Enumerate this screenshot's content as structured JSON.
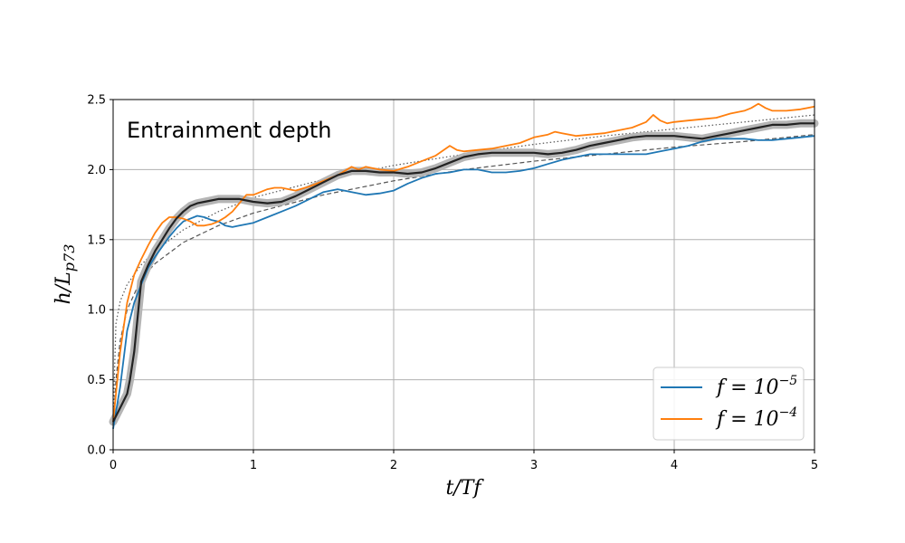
{
  "chart_data": {
    "type": "line",
    "annotation": "Entrainment depth",
    "xlabel": "t/Tf",
    "ylabel": "h/L_p73",
    "ylabel_main": "h/L",
    "ylabel_sub": "p73",
    "xlim": [
      0,
      5
    ],
    "ylim": [
      0,
      2.5
    ],
    "xticks": [
      "0",
      "1",
      "2",
      "3",
      "4",
      "5"
    ],
    "yticks": [
      "0.0",
      "0.5",
      "1.0",
      "1.5",
      "2.0",
      "2.5"
    ],
    "grid": true,
    "legend_position": "lower-right",
    "colors": {
      "blue": "#1f77b4",
      "orange": "#ff7f0e",
      "black": "#222222",
      "band": "#b5b5b5",
      "guide": "#555555"
    },
    "series": [
      {
        "name": "f=10^-5",
        "legend_base": "f = 10",
        "legend_exp": "−5",
        "color": "#1f77b4",
        "x": [
          0,
          0.05,
          0.1,
          0.15,
          0.2,
          0.25,
          0.3,
          0.35,
          0.4,
          0.45,
          0.5,
          0.55,
          0.6,
          0.65,
          0.7,
          0.75,
          0.8,
          0.85,
          0.9,
          0.95,
          1.0,
          1.1,
          1.2,
          1.3,
          1.4,
          1.5,
          1.6,
          1.7,
          1.8,
          1.9,
          2.0,
          2.1,
          2.2,
          2.3,
          2.4,
          2.5,
          2.6,
          2.7,
          2.8,
          2.9,
          3.0,
          3.1,
          3.2,
          3.3,
          3.4,
          3.5,
          3.6,
          3.7,
          3.8,
          3.9,
          4.0,
          4.1,
          4.2,
          4.3,
          4.4,
          4.5,
          4.6,
          4.7,
          4.8,
          4.9,
          5.0
        ],
        "y": [
          0.15,
          0.45,
          0.85,
          1.05,
          1.18,
          1.3,
          1.38,
          1.45,
          1.52,
          1.58,
          1.63,
          1.65,
          1.67,
          1.66,
          1.64,
          1.63,
          1.6,
          1.59,
          1.6,
          1.61,
          1.62,
          1.66,
          1.7,
          1.74,
          1.79,
          1.84,
          1.86,
          1.84,
          1.82,
          1.83,
          1.85,
          1.9,
          1.94,
          1.97,
          1.98,
          2.0,
          2.0,
          1.98,
          1.98,
          1.99,
          2.01,
          2.04,
          2.07,
          2.09,
          2.11,
          2.11,
          2.11,
          2.11,
          2.11,
          2.13,
          2.15,
          2.17,
          2.2,
          2.22,
          2.22,
          2.22,
          2.21,
          2.21,
          2.22,
          2.23,
          2.24
        ]
      },
      {
        "name": "f=10^-4",
        "legend_base": "f = 10",
        "legend_exp": "−4",
        "color": "#ff7f0e",
        "x": [
          0,
          0.05,
          0.1,
          0.15,
          0.2,
          0.25,
          0.3,
          0.35,
          0.4,
          0.45,
          0.5,
          0.55,
          0.6,
          0.65,
          0.7,
          0.75,
          0.8,
          0.85,
          0.9,
          0.95,
          1.0,
          1.05,
          1.1,
          1.15,
          1.2,
          1.3,
          1.4,
          1.5,
          1.6,
          1.7,
          1.75,
          1.8,
          1.9,
          2.0,
          2.1,
          2.2,
          2.3,
          2.4,
          2.45,
          2.5,
          2.6,
          2.7,
          2.8,
          2.9,
          3.0,
          3.1,
          3.15,
          3.2,
          3.3,
          3.4,
          3.5,
          3.6,
          3.7,
          3.8,
          3.85,
          3.9,
          3.95,
          4.0,
          4.1,
          4.2,
          4.3,
          4.4,
          4.5,
          4.55,
          4.6,
          4.65,
          4.7,
          4.8,
          4.9,
          5.0
        ],
        "y": [
          0.2,
          0.7,
          1.05,
          1.25,
          1.36,
          1.46,
          1.55,
          1.62,
          1.66,
          1.66,
          1.65,
          1.63,
          1.6,
          1.6,
          1.61,
          1.63,
          1.66,
          1.7,
          1.76,
          1.82,
          1.82,
          1.84,
          1.86,
          1.87,
          1.87,
          1.85,
          1.88,
          1.92,
          1.96,
          2.02,
          2.0,
          2.02,
          2.0,
          1.99,
          2.02,
          2.06,
          2.1,
          2.17,
          2.14,
          2.13,
          2.14,
          2.15,
          2.17,
          2.19,
          2.23,
          2.25,
          2.27,
          2.26,
          2.24,
          2.25,
          2.26,
          2.28,
          2.3,
          2.34,
          2.39,
          2.35,
          2.33,
          2.34,
          2.35,
          2.36,
          2.37,
          2.4,
          2.42,
          2.44,
          2.47,
          2.44,
          2.42,
          2.42,
          2.43,
          2.45
        ]
      },
      {
        "name": "",
        "style": "mean",
        "color": "#222222",
        "x": [
          0,
          0.05,
          0.1,
          0.12,
          0.15,
          0.18,
          0.2,
          0.25,
          0.3,
          0.35,
          0.4,
          0.45,
          0.5,
          0.55,
          0.6,
          0.65,
          0.7,
          0.75,
          0.8,
          0.85,
          0.9,
          0.95,
          1.0,
          1.1,
          1.2,
          1.3,
          1.4,
          1.5,
          1.6,
          1.7,
          1.8,
          1.9,
          2.0,
          2.1,
          2.2,
          2.3,
          2.4,
          2.5,
          2.6,
          2.7,
          2.8,
          2.9,
          3.0,
          3.1,
          3.2,
          3.3,
          3.4,
          3.5,
          3.6,
          3.7,
          3.8,
          3.9,
          4.0,
          4.1,
          4.2,
          4.3,
          4.4,
          4.5,
          4.6,
          4.7,
          4.8,
          4.9,
          5.0
        ],
        "y": [
          0.2,
          0.3,
          0.4,
          0.5,
          0.7,
          1.0,
          1.2,
          1.32,
          1.42,
          1.5,
          1.58,
          1.65,
          1.7,
          1.74,
          1.76,
          1.77,
          1.78,
          1.79,
          1.79,
          1.79,
          1.79,
          1.78,
          1.77,
          1.76,
          1.77,
          1.81,
          1.86,
          1.91,
          1.96,
          1.99,
          1.99,
          1.98,
          1.98,
          1.97,
          1.98,
          2.01,
          2.05,
          2.09,
          2.11,
          2.12,
          2.12,
          2.12,
          2.12,
          2.11,
          2.12,
          2.14,
          2.17,
          2.19,
          2.21,
          2.23,
          2.24,
          2.24,
          2.24,
          2.23,
          2.22,
          2.24,
          2.26,
          2.28,
          2.3,
          2.32,
          2.32,
          2.33,
          2.33
        ]
      },
      {
        "name": "",
        "style": "dashed-guide",
        "color": "#555555",
        "x": [
          0,
          0.02,
          0.05,
          0.1,
          0.2,
          0.3,
          0.5,
          0.75,
          1,
          1.5,
          2,
          2.5,
          3,
          3.5,
          4,
          4.5,
          5
        ],
        "y": [
          0.15,
          0.5,
          0.78,
          1.0,
          1.22,
          1.33,
          1.48,
          1.6,
          1.69,
          1.82,
          1.92,
          2.0,
          2.06,
          2.11,
          2.16,
          2.2,
          2.25
        ]
      },
      {
        "name": "",
        "style": "dotted-guide",
        "color": "#555555",
        "x": [
          0,
          0.02,
          0.05,
          0.1,
          0.2,
          0.3,
          0.5,
          0.75,
          1,
          1.5,
          2,
          2.5,
          3,
          3.5,
          4,
          4.5,
          5
        ],
        "y": [
          0.2,
          0.9,
          1.06,
          1.18,
          1.32,
          1.42,
          1.57,
          1.7,
          1.8,
          1.93,
          2.03,
          2.11,
          2.18,
          2.24,
          2.29,
          2.34,
          2.39
        ]
      }
    ]
  }
}
